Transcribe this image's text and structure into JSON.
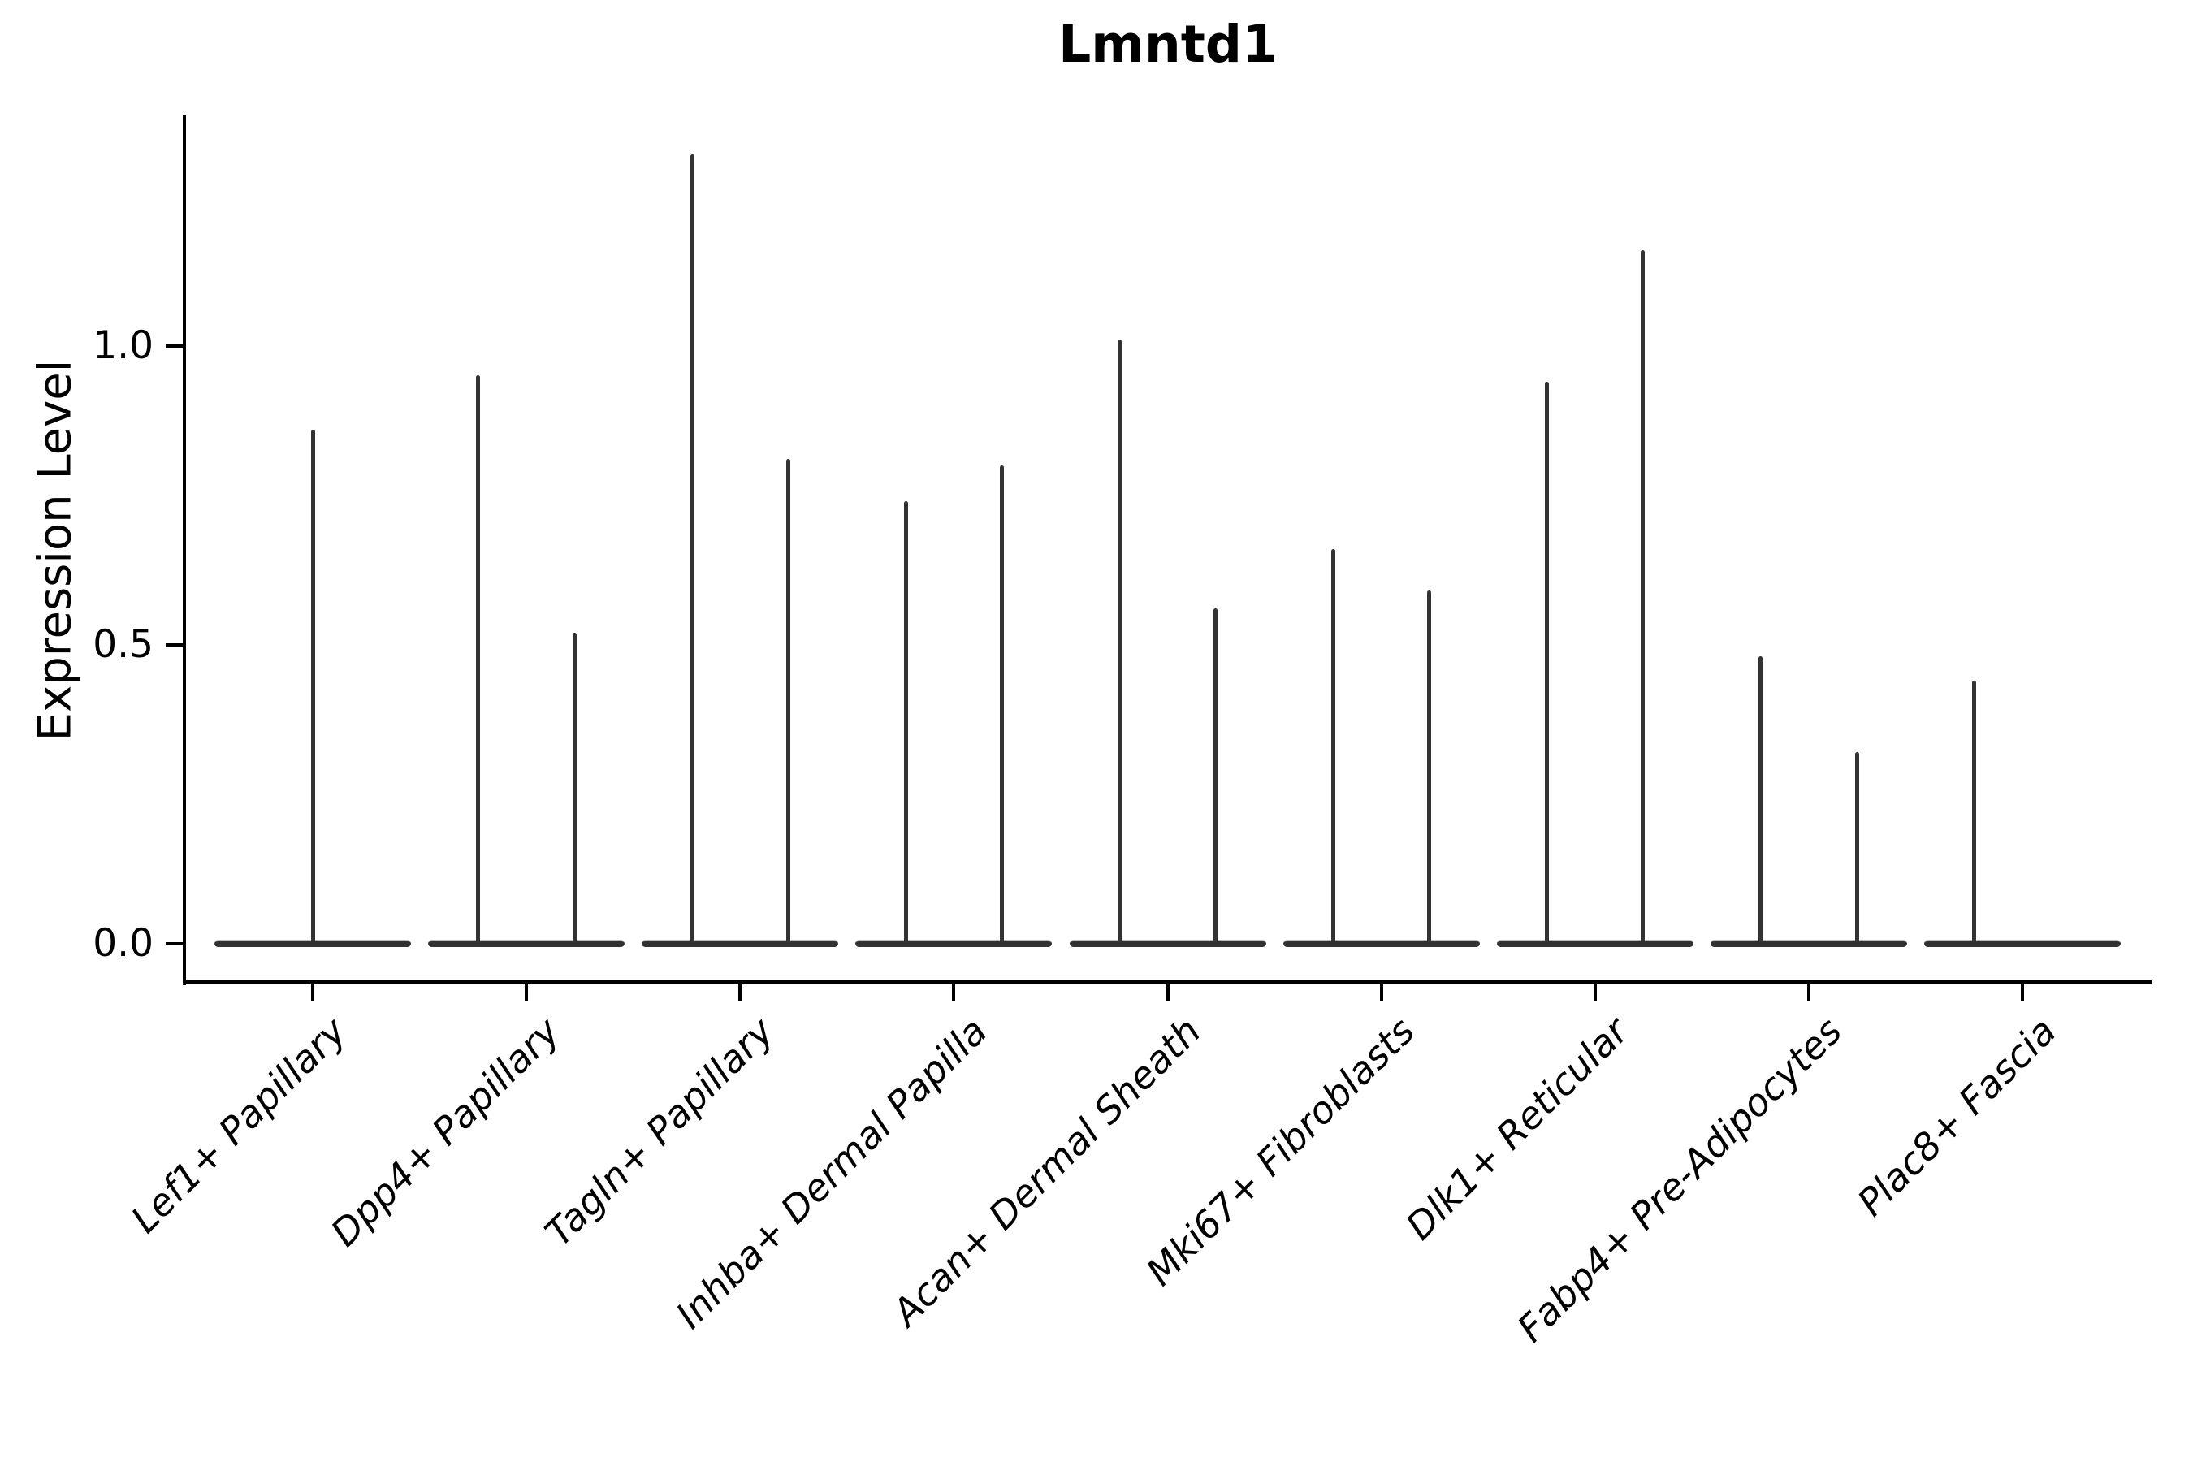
{
  "chart_data": {
    "type": "violin",
    "title": "Lmntd1",
    "ylabel": "Expression Level",
    "xlabel": "",
    "grid": false,
    "legend": null,
    "yticks": [
      {
        "value": 0.0,
        "label": "0.0"
      },
      {
        "value": 0.5,
        "label": "0.5"
      },
      {
        "value": 1.0,
        "label": "1.0"
      }
    ],
    "ylim": [
      -0.065,
      1.387
    ],
    "colors": {
      "violin_fill": "#313131",
      "violin_edge": "#b8b8b8",
      "spike": "#333333",
      "axis": "#000000",
      "background": "#ffffff"
    },
    "categories": [
      {
        "label": "Lef1+ Papillary",
        "spikes": [
          {
            "value": 0.86,
            "offset": 0.0
          }
        ]
      },
      {
        "label": "Dpp4+ Papillary",
        "spikes": [
          {
            "value": 0.95,
            "offset": -0.225
          },
          {
            "value": 0.52,
            "offset": 0.225
          }
        ]
      },
      {
        "label": "Tagln+ Papillary",
        "spikes": [
          {
            "value": 1.32,
            "offset": -0.225
          },
          {
            "value": 0.81,
            "offset": 0.225
          }
        ]
      },
      {
        "label": "Inhba+ Dermal Papilla",
        "spikes": [
          {
            "value": 0.74,
            "offset": -0.225
          },
          {
            "value": 0.8,
            "offset": 0.225
          }
        ]
      },
      {
        "label": "Acan+ Dermal Sheath",
        "spikes": [
          {
            "value": 1.01,
            "offset": -0.225
          },
          {
            "value": 0.56,
            "offset": 0.225
          }
        ]
      },
      {
        "label": "Mki67+ Fibroblasts",
        "spikes": [
          {
            "value": 0.66,
            "offset": -0.225
          },
          {
            "value": 0.59,
            "offset": 0.225
          }
        ]
      },
      {
        "label": "Dlk1+ Reticular",
        "spikes": [
          {
            "value": 0.94,
            "offset": -0.225
          },
          {
            "value": 1.16,
            "offset": 0.225
          }
        ]
      },
      {
        "label": "Fabp4+ Pre-Adipocytes",
        "spikes": [
          {
            "value": 0.48,
            "offset": -0.225
          },
          {
            "value": 0.32,
            "offset": 0.225
          }
        ]
      },
      {
        "label": "Plac8+ Fascia",
        "spikes": [
          {
            "value": 0.44,
            "offset": -0.225
          }
        ]
      }
    ]
  }
}
